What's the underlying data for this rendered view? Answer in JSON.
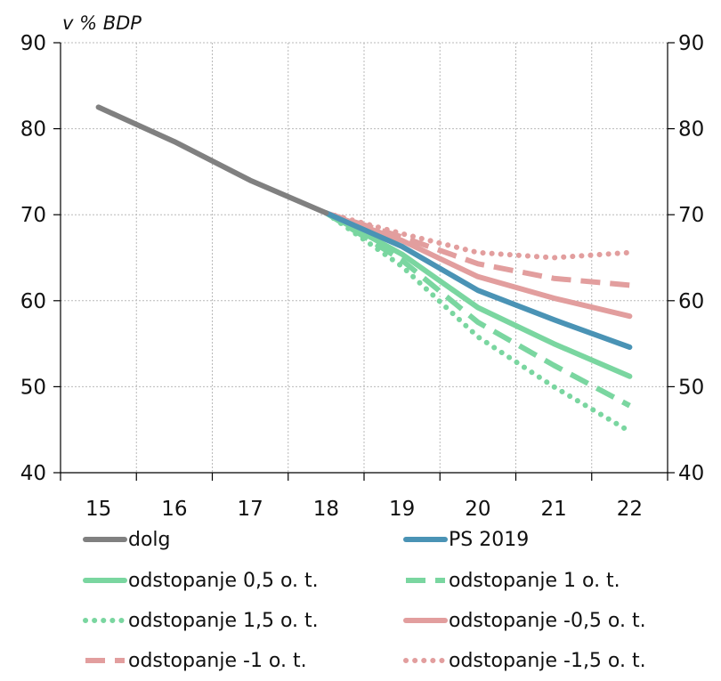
{
  "chart_data": {
    "type": "line",
    "unit_label": "v % BDP",
    "x_ticks": [
      "15",
      "16",
      "17",
      "18",
      "19",
      "20",
      "21",
      "22"
    ],
    "y_ticks": [
      40,
      50,
      60,
      70,
      80,
      90
    ],
    "ylim": [
      40,
      90
    ],
    "xlim": [
      14.5,
      22.5
    ],
    "right_axis": true,
    "grid": true,
    "legend_position": "bottom",
    "series": [
      {
        "name": "dolg",
        "color": "#808080",
        "style": "solid",
        "x": [
          15,
          16,
          17,
          18
        ],
        "y": [
          82.5,
          78.5,
          74.0,
          70.2
        ]
      },
      {
        "name": "PS 2019",
        "color": "#4a93b5",
        "style": "solid",
        "x": [
          18,
          19,
          20,
          21,
          22
        ],
        "y": [
          70.2,
          66.3,
          61.2,
          57.8,
          54.6
        ]
      },
      {
        "name": "odstopanje 0,5 o. t.",
        "color": "#7ad6a0",
        "style": "solid",
        "x": [
          18,
          19,
          20,
          21,
          22
        ],
        "y": [
          70.2,
          65.4,
          59.2,
          55.0,
          51.2
        ]
      },
      {
        "name": "odstopanje 1 o. t.",
        "color": "#7ad6a0",
        "style": "dashed",
        "x": [
          18,
          19,
          20,
          21,
          22
        ],
        "y": [
          70.2,
          64.7,
          57.5,
          52.5,
          47.8
        ]
      },
      {
        "name": "odstopanje 1,5 o. t.",
        "color": "#7ad6a0",
        "style": "dotted",
        "x": [
          18,
          19,
          20,
          21,
          22
        ],
        "y": [
          70.2,
          64.0,
          55.8,
          50.0,
          44.8
        ]
      },
      {
        "name": "odstopanje -0,5 o. t.",
        "color": "#e29e9e",
        "style": "solid",
        "x": [
          18,
          19,
          20,
          21,
          22
        ],
        "y": [
          70.2,
          67.0,
          62.8,
          60.3,
          58.2
        ]
      },
      {
        "name": "odstopanje -1 o. t.",
        "color": "#e29e9e",
        "style": "dashed",
        "x": [
          18,
          19,
          20,
          21,
          22
        ],
        "y": [
          70.2,
          67.4,
          64.3,
          62.6,
          61.8
        ]
      },
      {
        "name": "odstopanje -1,5 o. t.",
        "color": "#e29e9e",
        "style": "dotted",
        "x": [
          18,
          19,
          20,
          21,
          22
        ],
        "y": [
          70.2,
          67.8,
          65.6,
          65.0,
          65.6
        ]
      }
    ]
  }
}
